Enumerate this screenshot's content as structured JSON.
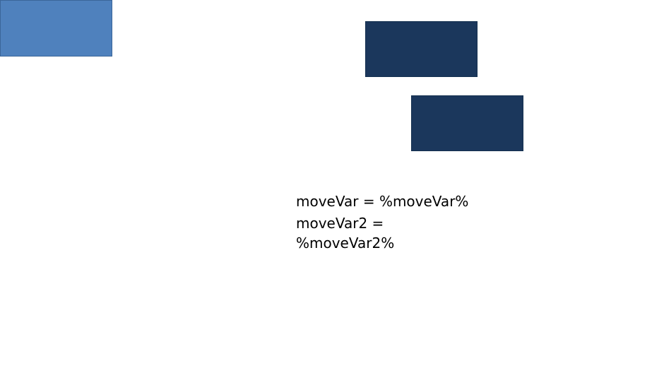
{
  "colors": {
    "light_shape": "#4f81bd",
    "dark_shape": "#1b375c",
    "text": "#000000",
    "background": "#ffffff"
  },
  "shapes": {
    "light": {
      "label": ""
    },
    "dark1": {
      "label": ""
    },
    "dark2": {
      "label": ""
    }
  },
  "labels": {
    "move_var": "moveVar = %moveVar%",
    "move_var2": "moveVar2 = %moveVar2%"
  }
}
